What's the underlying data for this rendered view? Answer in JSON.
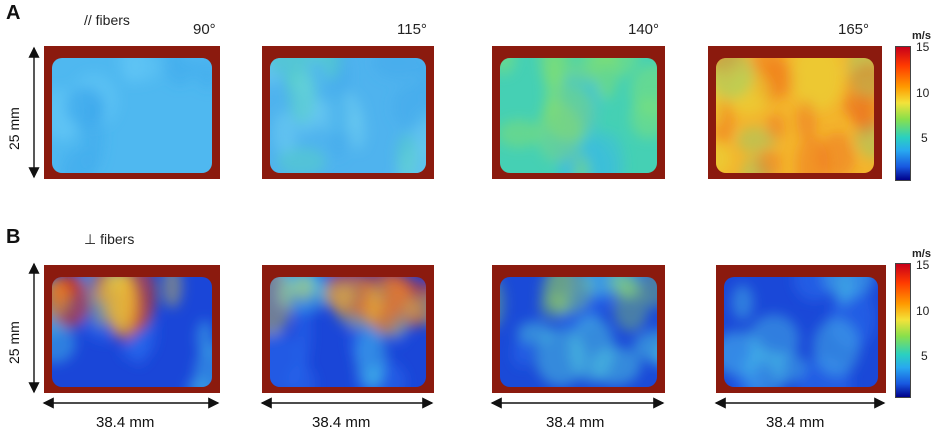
{
  "panels": [
    {
      "letter": "A",
      "orientation": "// fibers",
      "length_label": "25 mm",
      "maps": [
        {
          "angle": "90°",
          "base": "#4fb8f0",
          "blobs": [
            [
              "#63c6f5",
              0.55
            ],
            [
              "#3aa6ea",
              0.4
            ]
          ]
        },
        {
          "angle": "115°",
          "base": "#4fb3ee",
          "blobs": [
            [
              "#6fd0f2",
              0.5
            ],
            [
              "#40a8ec",
              0.45
            ],
            [
              "#5ae0b0",
              0.35
            ]
          ]
        },
        {
          "angle": "140°",
          "base": "#45d0b4",
          "blobs": [
            [
              "#7ce07a",
              0.55
            ],
            [
              "#3ab8e8",
              0.45
            ],
            [
              "#9fe24c",
              0.35
            ]
          ]
        },
        {
          "angle": "165°",
          "base": "#f3b42c",
          "blobs": [
            [
              "#f07a1c",
              0.55
            ],
            [
              "#e8dc3a",
              0.5
            ],
            [
              "#6ed68a",
              0.35
            ],
            [
              "#ea4a18",
              0.3
            ]
          ]
        }
      ],
      "colorbar": {
        "unit": "m/s",
        "ticks": [
          "15",
          "10",
          "5"
        ]
      }
    },
    {
      "letter": "B",
      "orientation": "⊥ fibers",
      "length_label": "25 mm",
      "width_label": "38.4 mm",
      "maps": [
        {
          "angle": "",
          "base": "#1a46d8",
          "blobs": [
            [
              "#2a6ef0",
              0.5
            ],
            [
              "#48c6e8",
              0.45
            ],
            [
              "#e03a14",
              0.6
            ],
            [
              "#f0d23a",
              0.4
            ]
          ]
        },
        {
          "angle": "",
          "base": "#1a46d8",
          "blobs": [
            [
              "#2a6ef0",
              0.5
            ],
            [
              "#48c6e8",
              0.45
            ],
            [
              "#e83418",
              0.55
            ],
            [
              "#f0d23a",
              0.4
            ]
          ]
        },
        {
          "angle": "",
          "base": "#1a4ad8",
          "blobs": [
            [
              "#2a70f0",
              0.5
            ],
            [
              "#50cae0",
              0.5
            ],
            [
              "#a0e050",
              0.35
            ]
          ]
        },
        {
          "angle": "",
          "base": "#1a48d8",
          "blobs": [
            [
              "#2a70f0",
              0.5
            ],
            [
              "#4ac2e6",
              0.45
            ]
          ]
        }
      ],
      "colorbar": {
        "unit": "m/s",
        "ticks": [
          "15",
          "10",
          "5"
        ]
      }
    }
  ]
}
